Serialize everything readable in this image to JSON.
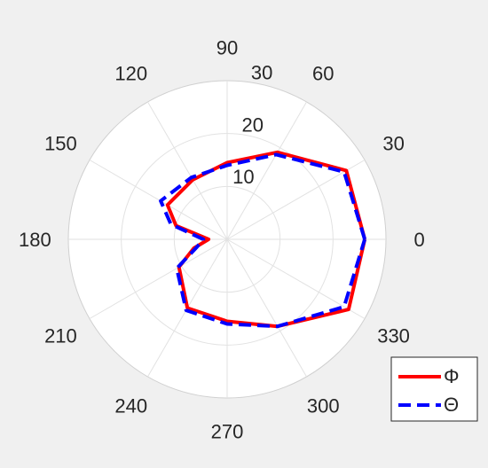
{
  "chart_data": {
    "type": "polar-line",
    "angle_unit": "degrees",
    "angle_ticks": [
      0,
      30,
      60,
      90,
      120,
      150,
      180,
      210,
      240,
      270,
      300,
      330
    ],
    "radial_ticks": [
      10,
      20,
      30
    ],
    "rlim": [
      0,
      30
    ],
    "grid": true,
    "legend_position": "bottom-right",
    "series": [
      {
        "name": "Φ",
        "color": "#ff0000",
        "line_style": "solid",
        "theta": [
          0,
          30,
          60,
          90,
          120,
          150,
          165,
          180,
          195,
          210,
          240,
          270,
          300,
          330
        ],
        "r": [
          26,
          26,
          19,
          14.5,
          13,
          13,
          10,
          3.5,
          6.5,
          10.5,
          15,
          15.5,
          19,
          26.5
        ]
      },
      {
        "name": "Θ",
        "color": "#0000ff",
        "line_style": "dashed",
        "theta": [
          0,
          30,
          60,
          90,
          120,
          150,
          165,
          180,
          195,
          210,
          240,
          270,
          300,
          330
        ],
        "r": [
          26,
          25.5,
          18.5,
          14,
          13.5,
          14.5,
          11,
          4.5,
          6,
          11,
          15.5,
          16,
          19,
          25.5
        ]
      }
    ]
  }
}
